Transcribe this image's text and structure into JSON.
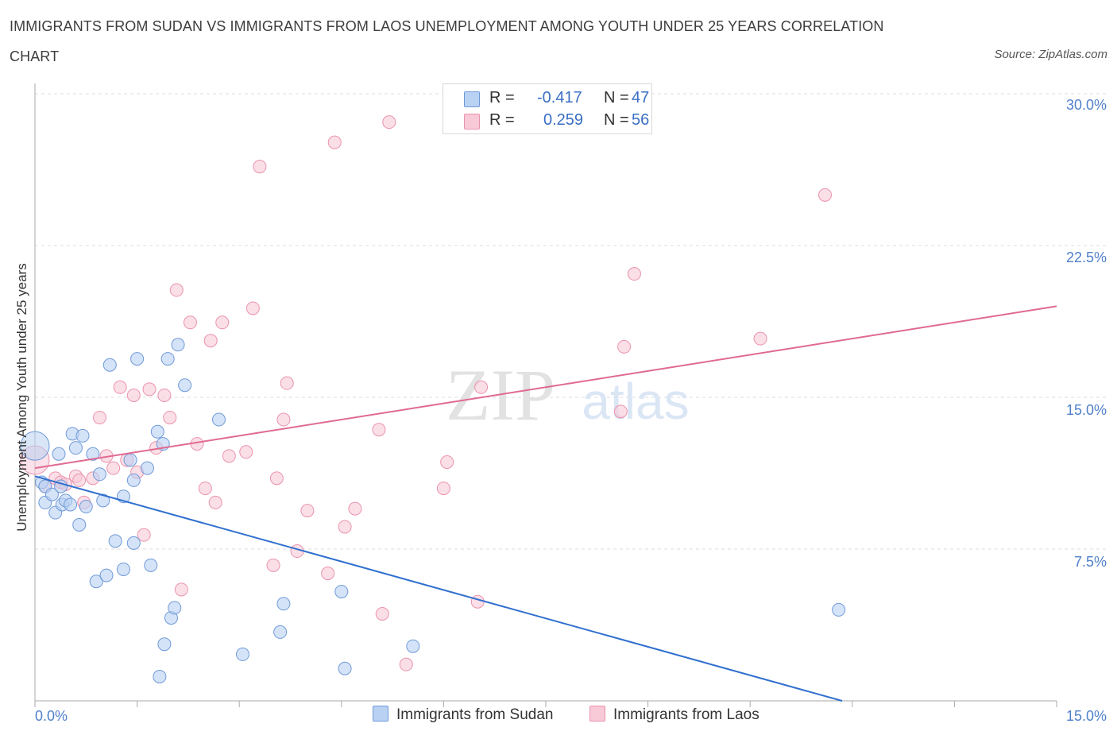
{
  "title": "IMMIGRANTS FROM SUDAN VS IMMIGRANTS FROM LAOS UNEMPLOYMENT AMONG YOUTH UNDER 25 YEARS CORRELATION CHART",
  "source": "Source: ZipAtlas.com",
  "watermark": {
    "zip": "ZIP",
    "atlas": "atlas"
  },
  "legend": {
    "r_label": "R =",
    "n_label": "N =",
    "sudan": {
      "r": "-0.417",
      "n": "47"
    },
    "laos": {
      "r": "0.259",
      "n": "56"
    }
  },
  "bottom_legend": {
    "sudan": "Immigrants from Sudan",
    "laos": "Immigrants from Laos"
  },
  "colors": {
    "sudan_fill": "#b9d1f3",
    "sudan_stroke": "#6f9ad8",
    "sudan_line": "#2f6fce",
    "laos_fill": "#f8c9d7",
    "laos_stroke": "#ea93ad",
    "laos_line": "#e06a91",
    "tick_text": "#4f7fc9",
    "grid": "#dcdcdc"
  },
  "chart_data": {
    "type": "scatter",
    "title": "IMMIGRANTS FROM SUDAN VS IMMIGRANTS FROM LAOS UNEMPLOYMENT AMONG YOUTH UNDER 25 YEARS CORRELATION CHART",
    "xlabel": "",
    "ylabel": "Unemployment Among Youth under 25 years",
    "xlim": [
      0,
      15
    ],
    "ylim": [
      0,
      30
    ],
    "x_tick_labels": [
      "0.0%",
      "15.0%"
    ],
    "y_ticks": [
      7.5,
      15,
      22.5,
      30
    ],
    "y_tick_labels": [
      "7.5%",
      "15.0%",
      "22.5%",
      "30.0%"
    ],
    "grid": true,
    "legend_position": "top-center",
    "series": [
      {
        "name": "Immigrants from Sudan",
        "r": -0.417,
        "n": 47,
        "trend": {
          "x": [
            0,
            11.85
          ],
          "y": [
            11.1,
            0
          ]
        },
        "points": [
          {
            "x": 0.0,
            "y": 12.6,
            "big": true
          },
          {
            "x": 0.1,
            "y": 10.8
          },
          {
            "x": 0.15,
            "y": 10.6
          },
          {
            "x": 0.15,
            "y": 9.8
          },
          {
            "x": 0.25,
            "y": 10.2
          },
          {
            "x": 0.3,
            "y": 9.3
          },
          {
            "x": 0.35,
            "y": 12.2
          },
          {
            "x": 0.38,
            "y": 10.6
          },
          {
            "x": 0.4,
            "y": 9.7
          },
          {
            "x": 0.45,
            "y": 9.9
          },
          {
            "x": 0.52,
            "y": 9.7
          },
          {
            "x": 0.55,
            "y": 13.2
          },
          {
            "x": 0.6,
            "y": 12.5
          },
          {
            "x": 0.65,
            "y": 8.7
          },
          {
            "x": 0.7,
            "y": 13.1
          },
          {
            "x": 0.75,
            "y": 9.6
          },
          {
            "x": 0.85,
            "y": 12.2
          },
          {
            "x": 0.9,
            "y": 5.9
          },
          {
            "x": 0.95,
            "y": 11.2
          },
          {
            "x": 1.0,
            "y": 9.9
          },
          {
            "x": 1.05,
            "y": 6.2
          },
          {
            "x": 1.1,
            "y": 16.6
          },
          {
            "x": 1.18,
            "y": 7.9
          },
          {
            "x": 1.3,
            "y": 6.5
          },
          {
            "x": 1.3,
            "y": 10.1
          },
          {
            "x": 1.4,
            "y": 11.9
          },
          {
            "x": 1.45,
            "y": 7.8
          },
          {
            "x": 1.45,
            "y": 10.9
          },
          {
            "x": 1.5,
            "y": 16.9
          },
          {
            "x": 1.65,
            "y": 11.5
          },
          {
            "x": 1.7,
            "y": 6.7
          },
          {
            "x": 1.8,
            "y": 13.3
          },
          {
            "x": 1.83,
            "y": 1.2
          },
          {
            "x": 1.88,
            "y": 12.7
          },
          {
            "x": 1.9,
            "y": 2.8
          },
          {
            "x": 1.95,
            "y": 16.9
          },
          {
            "x": 2.0,
            "y": 4.1
          },
          {
            "x": 2.05,
            "y": 4.6
          },
          {
            "x": 2.1,
            "y": 17.6
          },
          {
            "x": 2.2,
            "y": 15.6
          },
          {
            "x": 2.7,
            "y": 13.9
          },
          {
            "x": 3.05,
            "y": 2.3
          },
          {
            "x": 3.6,
            "y": 3.4
          },
          {
            "x": 3.65,
            "y": 4.8
          },
          {
            "x": 4.5,
            "y": 5.4
          },
          {
            "x": 4.55,
            "y": 1.6
          },
          {
            "x": 5.55,
            "y": 2.7
          },
          {
            "x": 11.8,
            "y": 4.5
          }
        ]
      },
      {
        "name": "Immigrants from Laos",
        "r": 0.259,
        "n": 56,
        "trend": {
          "x": [
            0,
            15
          ],
          "y": [
            11.5,
            19.5
          ]
        },
        "points": [
          {
            "x": 0.0,
            "y": 11.9,
            "big": true
          },
          {
            "x": 0.15,
            "y": 10.6
          },
          {
            "x": 0.3,
            "y": 11.0
          },
          {
            "x": 0.38,
            "y": 10.8
          },
          {
            "x": 0.45,
            "y": 10.7
          },
          {
            "x": 0.6,
            "y": 11.1
          },
          {
            "x": 0.65,
            "y": 10.9
          },
          {
            "x": 0.72,
            "y": 9.8
          },
          {
            "x": 0.85,
            "y": 11.0
          },
          {
            "x": 0.95,
            "y": 14.0
          },
          {
            "x": 1.05,
            "y": 12.1
          },
          {
            "x": 1.15,
            "y": 11.5
          },
          {
            "x": 1.25,
            "y": 15.5
          },
          {
            "x": 1.35,
            "y": 11.9
          },
          {
            "x": 1.45,
            "y": 15.1
          },
          {
            "x": 1.5,
            "y": 11.3
          },
          {
            "x": 1.6,
            "y": 8.2
          },
          {
            "x": 1.68,
            "y": 15.4
          },
          {
            "x": 1.78,
            "y": 12.5
          },
          {
            "x": 1.9,
            "y": 15.1
          },
          {
            "x": 1.98,
            "y": 14.0
          },
          {
            "x": 2.08,
            "y": 20.3
          },
          {
            "x": 2.15,
            "y": 5.5
          },
          {
            "x": 2.28,
            "y": 18.7
          },
          {
            "x": 2.38,
            "y": 12.7
          },
          {
            "x": 2.5,
            "y": 10.5
          },
          {
            "x": 2.58,
            "y": 17.8
          },
          {
            "x": 2.65,
            "y": 9.8
          },
          {
            "x": 2.75,
            "y": 18.7
          },
          {
            "x": 2.85,
            "y": 12.1
          },
          {
            "x": 3.1,
            "y": 12.3
          },
          {
            "x": 3.2,
            "y": 19.4
          },
          {
            "x": 3.3,
            "y": 26.4
          },
          {
            "x": 3.5,
            "y": 6.7
          },
          {
            "x": 3.55,
            "y": 11.0
          },
          {
            "x": 3.65,
            "y": 13.9
          },
          {
            "x": 3.7,
            "y": 15.7
          },
          {
            "x": 3.85,
            "y": 7.4
          },
          {
            "x": 4.0,
            "y": 9.4
          },
          {
            "x": 4.3,
            "y": 6.3
          },
          {
            "x": 4.4,
            "y": 27.6
          },
          {
            "x": 4.55,
            "y": 8.6
          },
          {
            "x": 4.7,
            "y": 9.5
          },
          {
            "x": 5.05,
            "y": 13.4
          },
          {
            "x": 5.1,
            "y": 4.3
          },
          {
            "x": 5.2,
            "y": 28.6
          },
          {
            "x": 5.45,
            "y": 1.8
          },
          {
            "x": 6.0,
            "y": 10.5
          },
          {
            "x": 6.05,
            "y": 11.8
          },
          {
            "x": 6.5,
            "y": 4.9
          },
          {
            "x": 6.55,
            "y": 15.5
          },
          {
            "x": 8.6,
            "y": 14.3
          },
          {
            "x": 8.65,
            "y": 17.5
          },
          {
            "x": 8.8,
            "y": 21.1
          },
          {
            "x": 10.65,
            "y": 17.9
          },
          {
            "x": 11.6,
            "y": 25.0
          }
        ]
      }
    ]
  }
}
